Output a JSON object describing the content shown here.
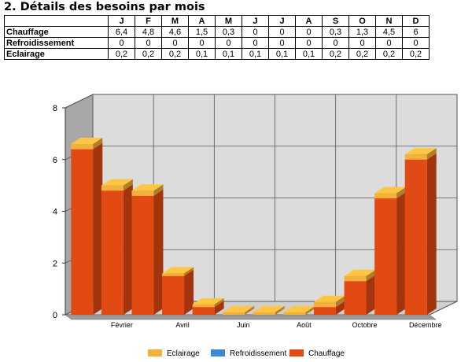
{
  "heading": "2. Détails des besoins par mois",
  "table": {
    "months": [
      "J",
      "F",
      "M",
      "A",
      "M",
      "J",
      "J",
      "A",
      "S",
      "O",
      "N",
      "D"
    ],
    "rows": [
      {
        "label": "Chauffage",
        "values": [
          "6,4",
          "4,8",
          "4,6",
          "1,5",
          "0,3",
          "0",
          "0",
          "0",
          "0,3",
          "1,3",
          "4,5",
          "6"
        ]
      },
      {
        "label": "Refroidissement",
        "values": [
          "0",
          "0",
          "0",
          "0",
          "0",
          "0",
          "0",
          "0",
          "0",
          "0",
          "0",
          "0"
        ]
      },
      {
        "label": "Eclairage",
        "values": [
          "0,2",
          "0,2",
          "0,2",
          "0,1",
          "0,1",
          "0,1",
          "0,1",
          "0,1",
          "0,2",
          "0,2",
          "0,2",
          "0,2"
        ]
      }
    ]
  },
  "chart_data": {
    "type": "bar",
    "stacked": true,
    "three_d": true,
    "categories": [
      "",
      "Février",
      "",
      "Avril",
      "",
      "Juin",
      "",
      "Août",
      "",
      "Octobre",
      "",
      "Décembre"
    ],
    "series": [
      {
        "name": "Chauffage",
        "color": "#e24a14",
        "values": [
          6.4,
          4.8,
          4.6,
          1.5,
          0.3,
          0,
          0,
          0,
          0.3,
          1.3,
          4.5,
          6.0
        ]
      },
      {
        "name": "Refroidissement",
        "color": "#3d86d8",
        "values": [
          0,
          0,
          0,
          0,
          0,
          0,
          0,
          0,
          0,
          0,
          0,
          0
        ]
      },
      {
        "name": "Eclairage",
        "color": "#f2b13c",
        "values": [
          0.2,
          0.2,
          0.2,
          0.1,
          0.1,
          0.1,
          0.1,
          0.1,
          0.2,
          0.2,
          0.2,
          0.2
        ]
      }
    ],
    "ylim": [
      0,
      8
    ],
    "yticks": [
      "0",
      "2",
      "4",
      "6",
      "8"
    ],
    "grid": true,
    "legend_position": "bottom",
    "legend": [
      "Eclairage",
      "Refroidissement",
      "Chauffage"
    ]
  }
}
